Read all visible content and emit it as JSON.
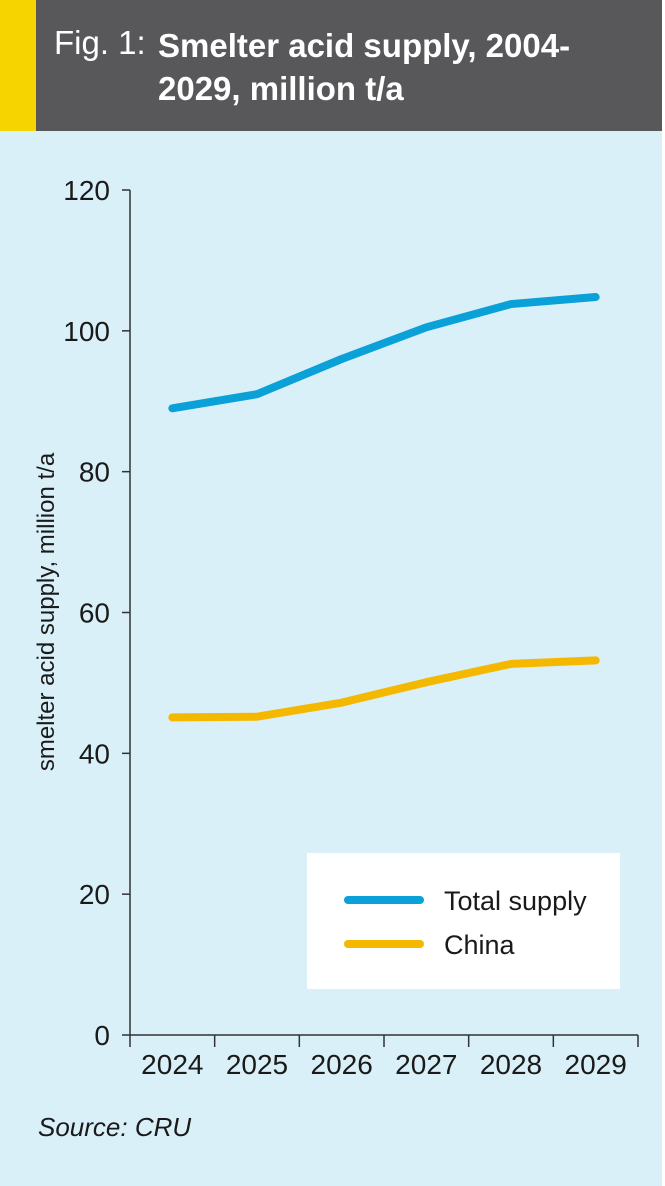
{
  "figure": {
    "label": "Fig. 1:",
    "title": "Smelter acid supply, 2004-2029, million t/a",
    "source": "Source: CRU"
  },
  "colors": {
    "header_bg": "#58585a",
    "accent": "#f5d400",
    "panel_bg": "#d9f0f8",
    "total_supply": "#0aa0d8",
    "china": "#f5b800"
  },
  "chart_data": {
    "type": "line",
    "title": "Smelter acid supply, 2004-2029, million t/a",
    "xlabel": "",
    "ylabel": "smelter acid supply, million t/a",
    "categories": [
      "2024",
      "2025",
      "2026",
      "2027",
      "2028",
      "2029"
    ],
    "ylim": [
      0,
      120
    ],
    "yticks": [
      0,
      20,
      40,
      60,
      80,
      100,
      120
    ],
    "grid": false,
    "legend_position": "bottom-right",
    "series": [
      {
        "name": "Total supply",
        "values": [
          89,
          91,
          96,
          100.5,
          103.8,
          104.8
        ]
      },
      {
        "name": "China",
        "values": [
          45.1,
          45.2,
          47.2,
          50.1,
          52.7,
          53.2
        ]
      }
    ]
  }
}
